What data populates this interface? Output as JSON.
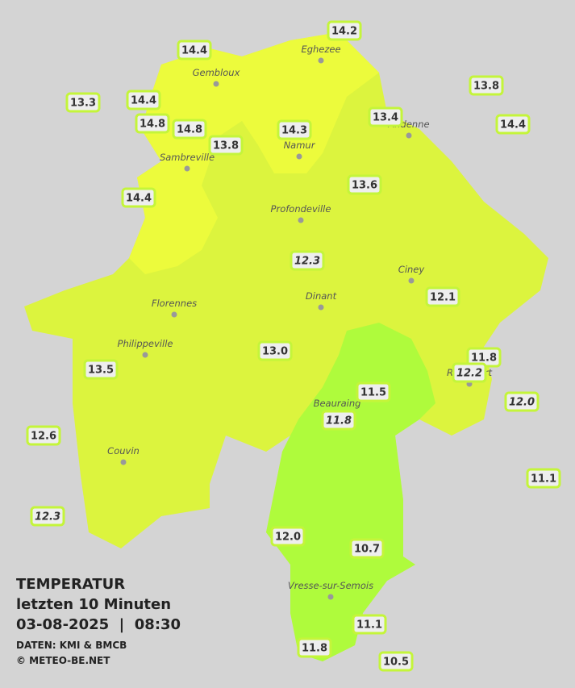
{
  "legend": {
    "title": "TEMPERATUR",
    "subtitle": "letzten 10 Minuten",
    "datetime": "03-08-2025  |  08:30",
    "source": "DATEN: KMI & BMCB",
    "credit": "© METEO-BE.NET"
  },
  "cities": [
    "Eghezee",
    "Gembloux",
    "Andenne",
    "Namur",
    "Sambreville",
    "Profondeville",
    "Ciney",
    "Dinant",
    "Florennes",
    "Philippeville",
    "Rochefort",
    "Beauraing",
    "Couvin",
    "Vresse-sur-Semois"
  ],
  "stations": [
    "14.2",
    "14.4",
    "13.3",
    "14.4",
    "13.8",
    "14.8",
    "14.8",
    "13.4",
    "14.4",
    "14.3",
    "13.8",
    "13.6",
    "14.4",
    "12.3",
    "12.1",
    "13.0",
    "13.5",
    "11.8",
    "12.2",
    "11.5",
    "12.0",
    "11.8",
    "12.6",
    "11.1",
    "12.3",
    "12.0",
    "10.7",
    "11.1",
    "11.8",
    "10.5"
  ]
}
